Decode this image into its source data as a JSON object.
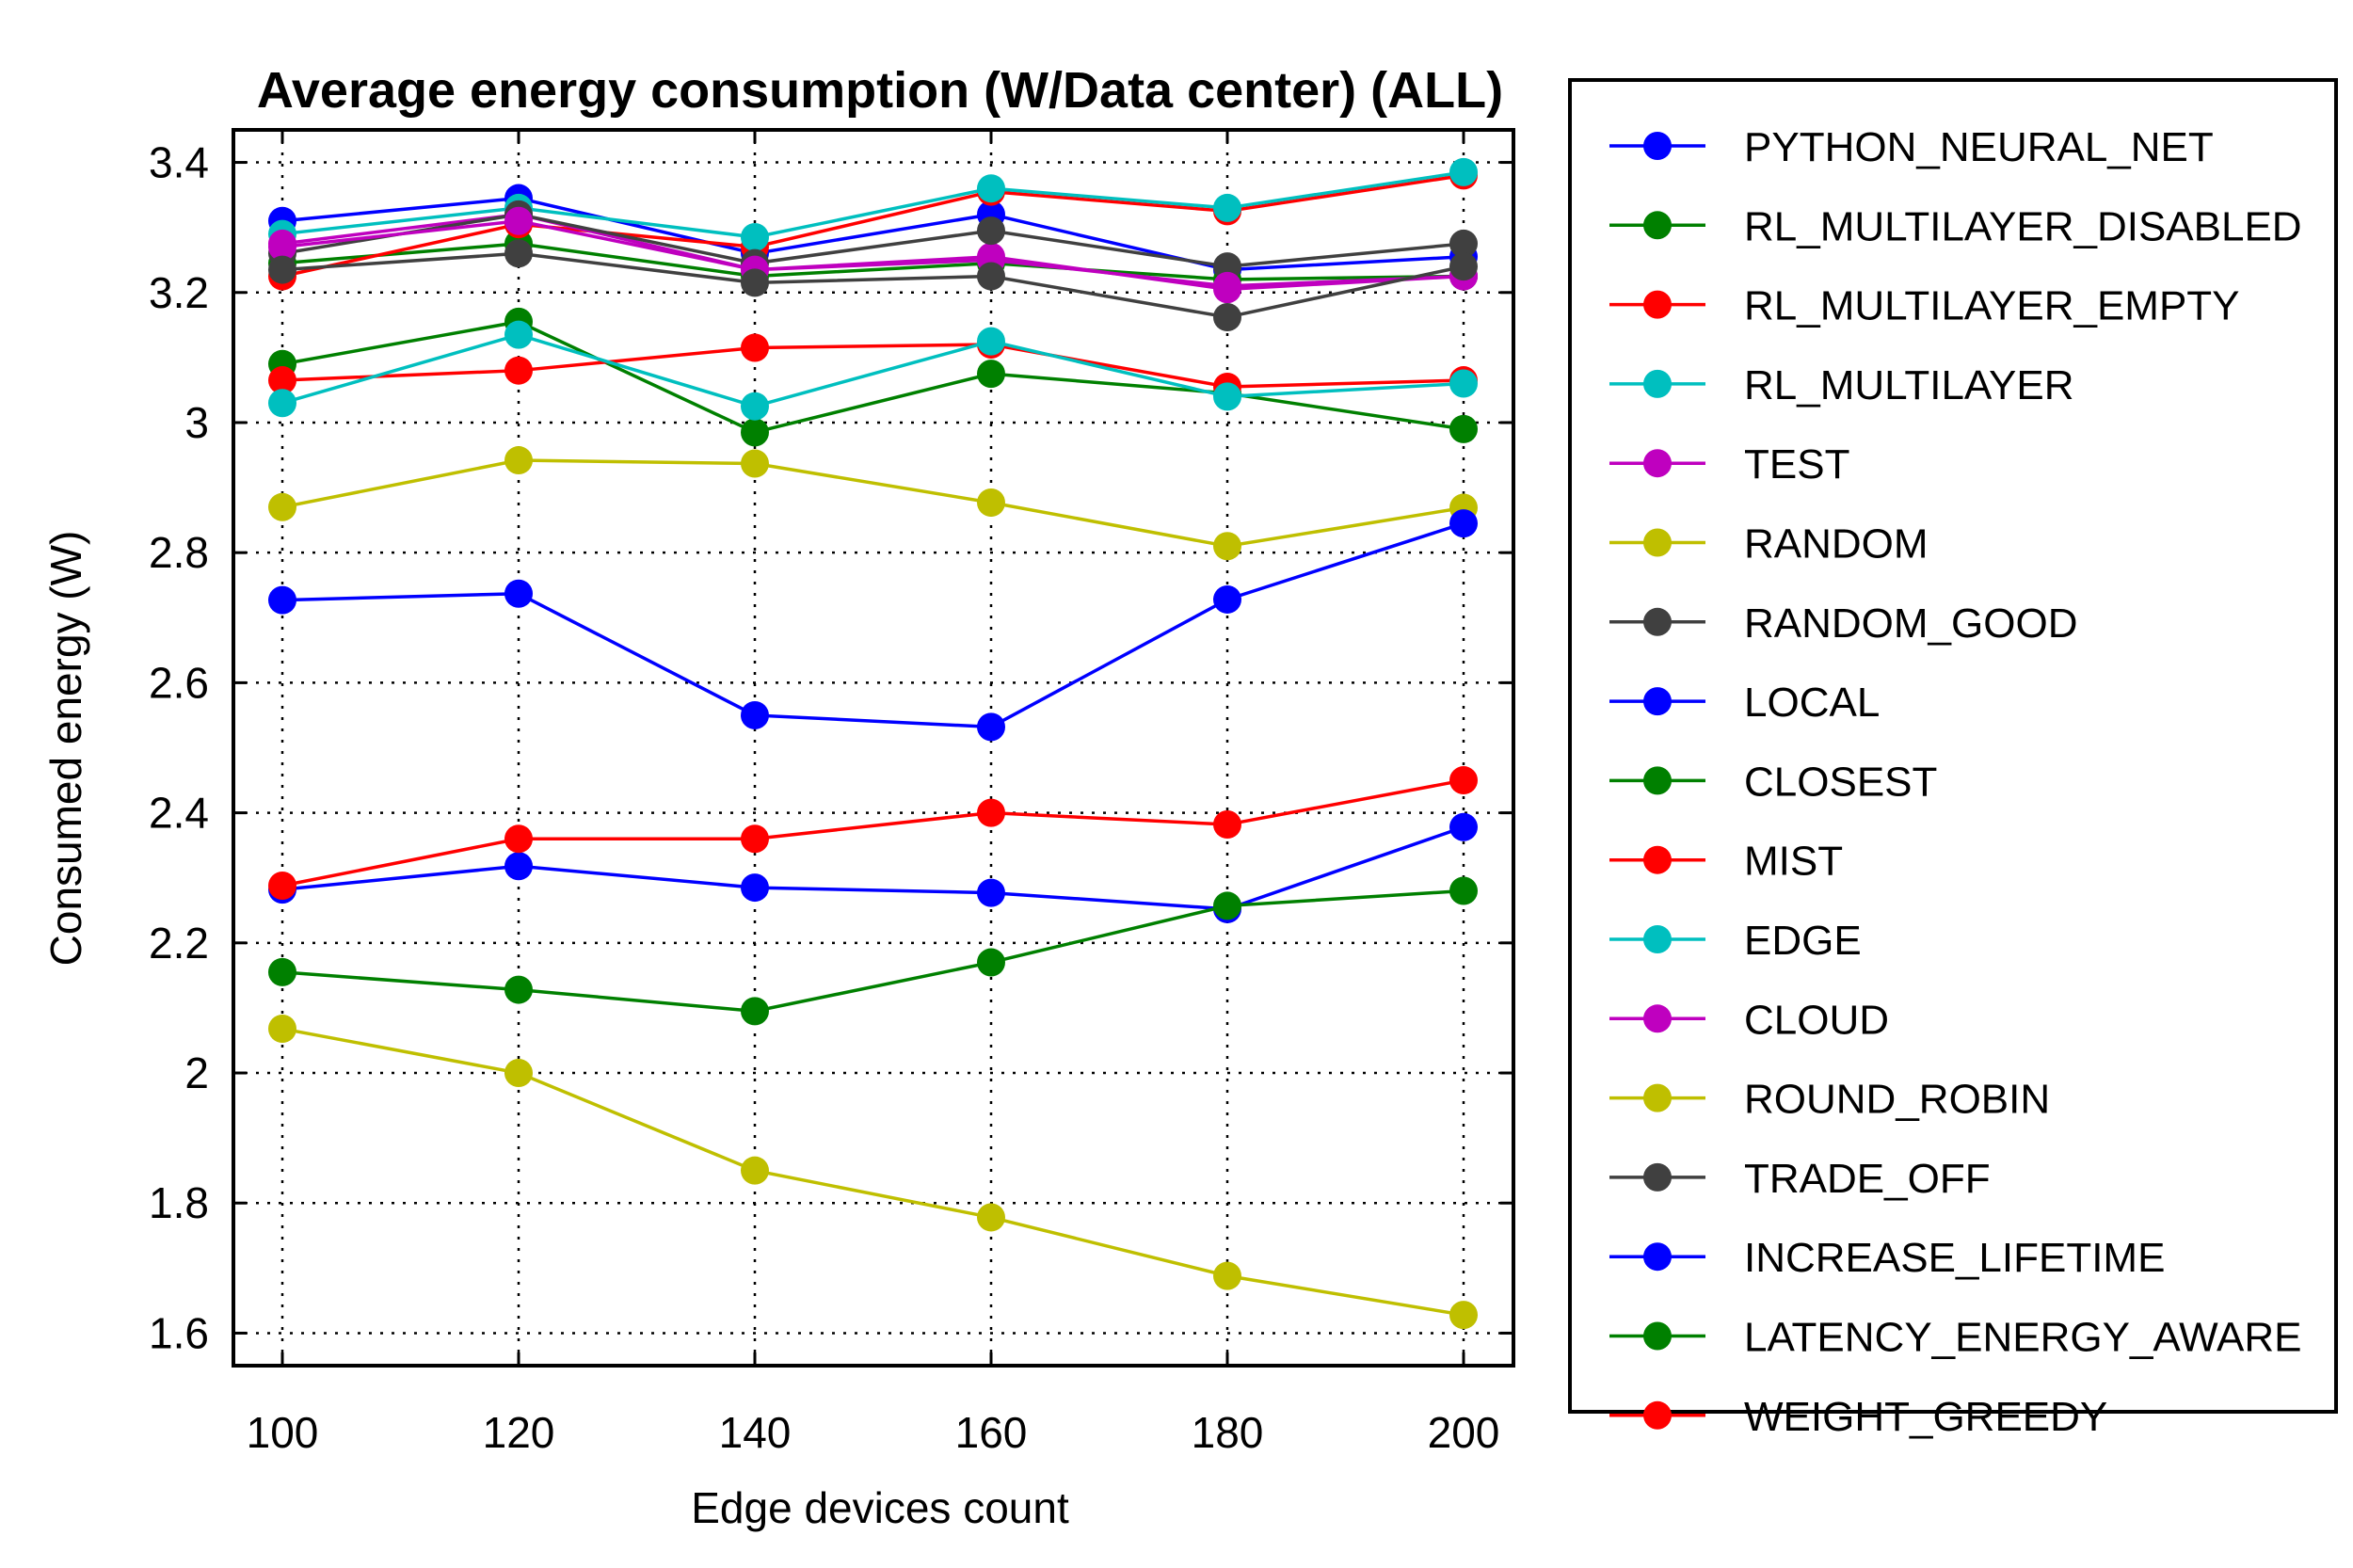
{
  "chart_data": {
    "type": "line",
    "title": "Average energy consumption (W/Data center) (ALL)",
    "xlabel": "Edge devices count",
    "ylabel": "Consumed energy (W)",
    "x": [
      100,
      120,
      140,
      160,
      180,
      200
    ],
    "xlim": [
      100,
      200
    ],
    "ylim": [
      1.55,
      3.45
    ],
    "x_ticks": [
      100,
      120,
      140,
      160,
      180,
      200
    ],
    "y_ticks": [
      1.6,
      1.8,
      2,
      2.2,
      2.4,
      2.6,
      2.8,
      3,
      3.2,
      3.4
    ],
    "y_tick_labels": [
      "1.6",
      "1.8",
      "2",
      "2.2",
      "2.4",
      "2.6",
      "2.8",
      "3",
      "3.2",
      "3.4"
    ],
    "grid": true,
    "legend_position": "outside right",
    "series": [
      {
        "name": "PYTHON_NEURAL_NET",
        "color": "#0000ff",
        "values": [
          3.31,
          3.345,
          3.26,
          3.32,
          3.235,
          3.255
        ]
      },
      {
        "name": "RL_MULTILAYER_DISABLED",
        "color": "#008000",
        "values": [
          3.245,
          3.275,
          3.225,
          3.245,
          3.22,
          3.225
        ]
      },
      {
        "name": "RL_MULTILAYER_EMPTY",
        "color": "#ff0000",
        "values": [
          3.225,
          3.305,
          3.27,
          3.355,
          3.325,
          3.38
        ]
      },
      {
        "name": "RL_MULTILAYER",
        "color": "#00bfbf",
        "values": [
          3.29,
          3.33,
          3.285,
          3.36,
          3.33,
          3.385
        ]
      },
      {
        "name": "TEST",
        "color": "#bf00bf",
        "values": [
          3.275,
          3.32,
          3.235,
          3.255,
          3.205,
          3.225
        ]
      },
      {
        "name": "RANDOM",
        "color": "#bfbf00",
        "values": [
          2.87,
          2.942,
          2.937,
          2.877,
          2.81,
          2.869
        ]
      },
      {
        "name": "RANDOM_GOOD",
        "color": "#404040",
        "values": [
          3.26,
          3.32,
          3.245,
          3.295,
          3.24,
          3.275
        ]
      },
      {
        "name": "LOCAL",
        "color": "#0000ff",
        "values": [
          2.727,
          2.737,
          2.55,
          2.532,
          2.728,
          2.845
        ]
      },
      {
        "name": "CLOSEST",
        "color": "#008000",
        "values": [
          3.09,
          3.155,
          2.985,
          3.075,
          3.045,
          2.99
        ]
      },
      {
        "name": "MIST",
        "color": "#ff0000",
        "values": [
          3.065,
          3.08,
          3.115,
          3.12,
          3.055,
          3.065
        ]
      },
      {
        "name": "EDGE",
        "color": "#00bfbf",
        "values": [
          3.03,
          3.135,
          3.025,
          3.125,
          3.04,
          3.06
        ]
      },
      {
        "name": "CLOUD",
        "color": "#bf00bf",
        "values": [
          3.27,
          3.31,
          3.235,
          3.25,
          3.21,
          3.225
        ]
      },
      {
        "name": "ROUND_ROBIN",
        "color": "#bfbf00",
        "values": [
          2.068,
          2.0,
          1.85,
          1.778,
          1.688,
          1.628
        ]
      },
      {
        "name": "TRADE_OFF",
        "color": "#404040",
        "values": [
          3.235,
          3.26,
          3.215,
          3.225,
          3.162,
          3.24
        ]
      },
      {
        "name": "INCREASE_LIFETIME",
        "color": "#0000ff",
        "values": [
          2.282,
          2.318,
          2.285,
          2.277,
          2.252,
          2.378
        ]
      },
      {
        "name": "LATENCY_ENERGY_AWARE",
        "color": "#008000",
        "values": [
          2.155,
          2.128,
          2.095,
          2.17,
          2.257,
          2.28
        ]
      },
      {
        "name": "WEIGHT_GREEDY",
        "color": "#ff0000",
        "values": [
          2.288,
          2.36,
          2.36,
          2.4,
          2.382,
          2.45
        ]
      }
    ]
  }
}
